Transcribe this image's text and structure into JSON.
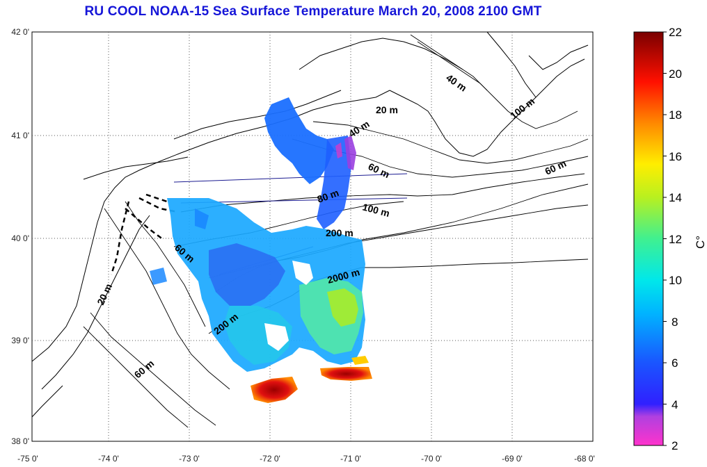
{
  "title": "RU COOL  NOAA-15 Sea Surface Temperature March 20, 2008 2100 GMT",
  "map": {
    "lon_ticks": [
      "-75 0'",
      "-74 0'",
      "-73 0'",
      "-72 0'",
      "-71 0'",
      "-70 0'",
      "-69 0'",
      "-68 0'"
    ],
    "lat_ticks": [
      "42 0'",
      "41 0'",
      "40 0'",
      "39 0'",
      "38 0'"
    ],
    "contour_labels": [
      "40 m",
      "20 m",
      "40 m",
      "100 m",
      "60 m",
      "60 m",
      "80 m",
      "100 m",
      "200 m",
      "60 m",
      "2000 m",
      "20 m",
      "200 m",
      "60 m"
    ]
  },
  "colorbar": {
    "ticks": [
      "22",
      "20",
      "18",
      "16",
      "14",
      "12",
      "10",
      "8",
      "6",
      "4",
      "2"
    ],
    "unit": "C°",
    "range": [
      2,
      22
    ]
  }
}
